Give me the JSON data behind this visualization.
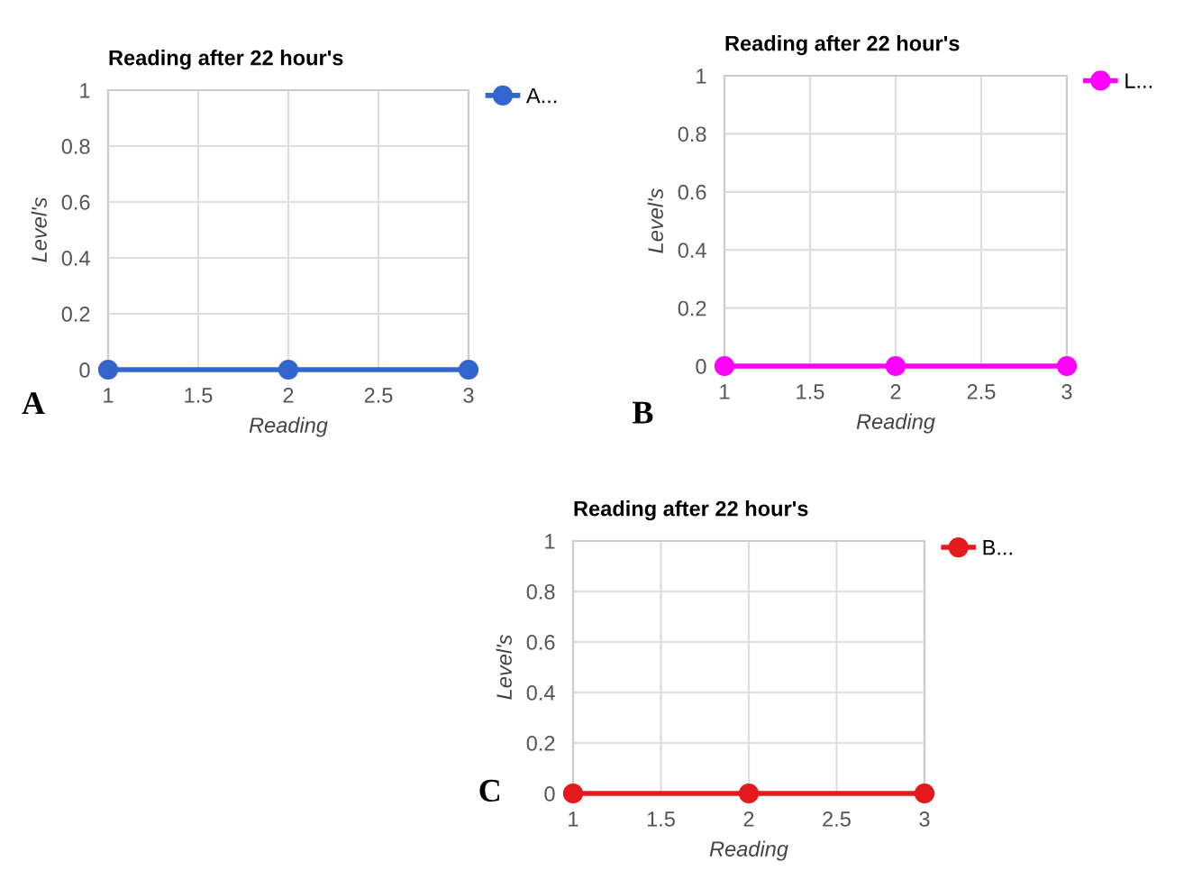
{
  "chart_data": [
    {
      "type": "line",
      "title": "Reading after 22 hour's",
      "xlabel": "Reading",
      "ylabel": "Level's",
      "x": [
        1,
        2,
        3
      ],
      "series": [
        {
          "name": "A...",
          "color": "#3366cc",
          "values": [
            0,
            0,
            0
          ]
        }
      ],
      "xlim": [
        1,
        3
      ],
      "xticks": [
        1,
        1.5,
        2,
        2.5,
        3
      ],
      "ylim": [
        0,
        1
      ],
      "yticks": [
        0,
        0.2,
        0.4,
        0.6,
        0.8,
        1
      ],
      "grid": true,
      "legend": "top right",
      "marker": "circle",
      "line_style": "solid",
      "annotations": [
        "A"
      ]
    },
    {
      "type": "line",
      "title": "Reading after 22 hour's",
      "xlabel": "Reading",
      "ylabel": "Level's",
      "x": [
        1,
        2,
        3
      ],
      "series": [
        {
          "name": "L...",
          "color": "#ff00ff",
          "values": [
            0,
            0,
            0
          ]
        }
      ],
      "xlim": [
        1,
        3
      ],
      "xticks": [
        1,
        1.5,
        2,
        2.5,
        3
      ],
      "ylim": [
        0,
        1
      ],
      "yticks": [
        0,
        0.2,
        0.4,
        0.6,
        0.8,
        1
      ],
      "grid": true,
      "legend": "top right",
      "marker": "circle",
      "line_style": "solid",
      "annotations": [
        "B"
      ]
    },
    {
      "type": "line",
      "title": "Reading after 22 hour's",
      "xlabel": "Reading",
      "ylabel": "Level's",
      "x": [
        1,
        2,
        3
      ],
      "series": [
        {
          "name": "B...",
          "color": "#e41a1c",
          "values": [
            0,
            0,
            0
          ]
        }
      ],
      "xlim": [
        1,
        3
      ],
      "xticks": [
        1,
        1.5,
        2,
        2.5,
        3
      ],
      "ylim": [
        0,
        1
      ],
      "yticks": [
        0,
        0.2,
        0.4,
        0.6,
        0.8,
        1
      ],
      "grid": true,
      "legend": "top right",
      "marker": "circle",
      "line_style": "solid",
      "annotations": [
        "C"
      ]
    }
  ]
}
